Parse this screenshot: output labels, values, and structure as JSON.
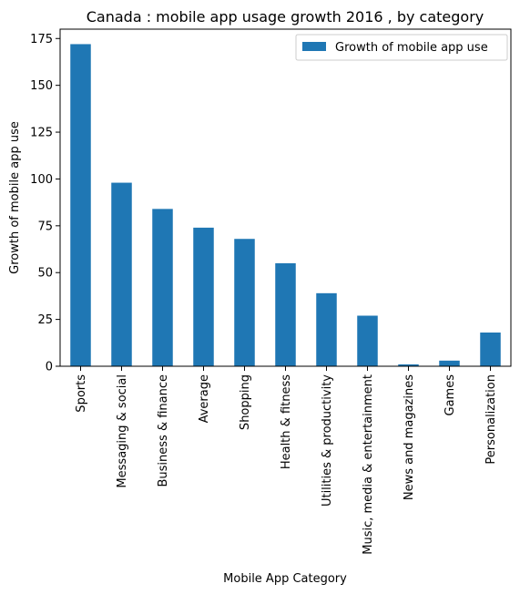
{
  "chart_data": {
    "type": "bar",
    "title": "Canada : mobile app usage growth 2016 , by category",
    "xlabel": "Mobile App Category",
    "ylabel": "Growth of mobile app use",
    "categories": [
      "Sports",
      "Messaging & social",
      "Business & finance",
      "Average",
      "Shopping",
      "Health & fitness",
      "Utilities & productivity",
      "Music, media & entertainment",
      "News and magazines",
      "Games",
      "Personalization"
    ],
    "series": [
      {
        "name": "Growth of mobile app use",
        "color": "#1f77b4",
        "values": [
          172,
          98,
          84,
          74,
          68,
          55,
          39,
          27,
          1,
          3,
          18
        ]
      }
    ],
    "ylim": [
      0,
      180
    ],
    "yticks": [
      0,
      25,
      50,
      75,
      100,
      125,
      150,
      175
    ],
    "grid": false,
    "legend_position": "top-right"
  }
}
